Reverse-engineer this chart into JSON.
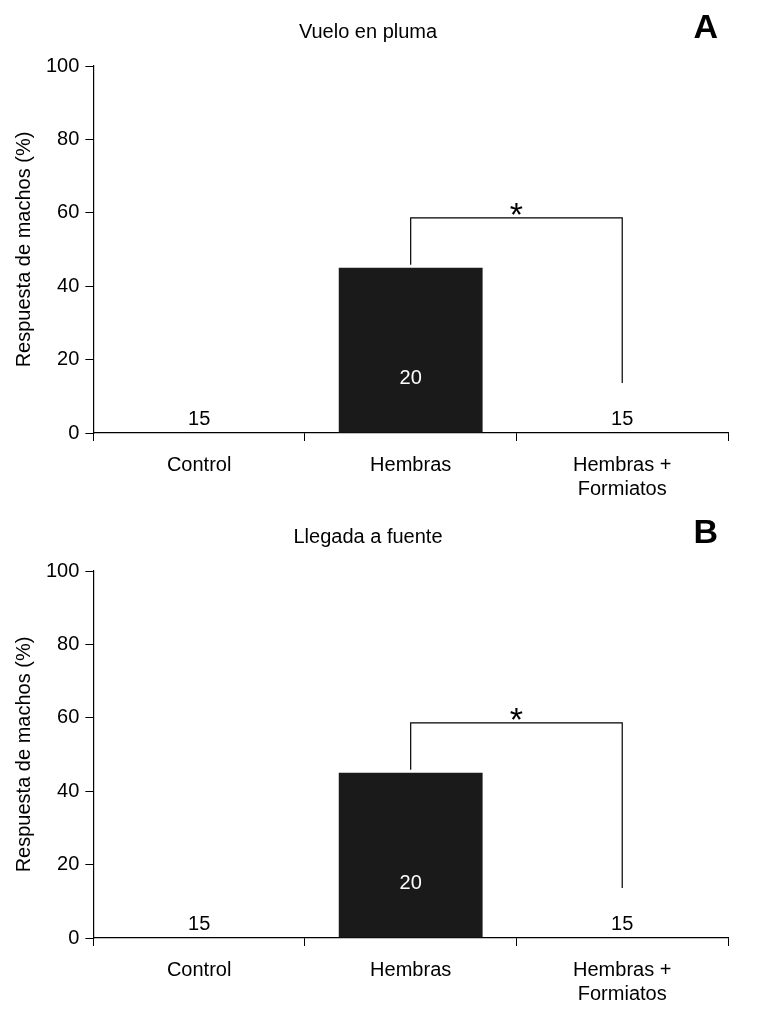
{
  "chart_data": [
    {
      "type": "bar",
      "title": "Vuelo en pluma",
      "ylabel": "Respuesta de machos (%)",
      "categories": [
        "Control",
        "Hembras",
        "Hembras + Formiatos"
      ],
      "values": [
        0,
        45,
        0
      ],
      "color": "#1a1a1a",
      "ylim": [
        0,
        100
      ],
      "yticks": [
        0,
        20,
        40,
        60,
        80,
        100
      ],
      "grid": false,
      "legend": false,
      "annotations": [
        "A",
        "*",
        {
          "text": "15",
          "x": "Control",
          "y": 0
        },
        "20",
        {
          "text": "15",
          "x": "Hembras + Formiatos",
          "y": 0
        }
      ]
    },
    {
      "type": "bar",
      "title": "Llegada a fuente",
      "ylabel": "Respuesta de machos (%)",
      "categories": [
        "Control",
        "Hembras",
        "Hembras + Formiatos"
      ],
      "values": [
        0,
        45,
        0
      ],
      "color": "#1a1a1a",
      "ylim": [
        0,
        100
      ],
      "yticks": [
        0,
        20,
        40,
        60,
        80,
        100
      ],
      "grid": false,
      "legend": false,
      "annotations": [
        "B",
        "*",
        {
          "text": "15",
          "x": "Control",
          "y": 0
        },
        "20",
        {
          "text": "15",
          "x": "Hembras + Formiatos",
          "y": 0
        }
      ]
    }
  ]
}
